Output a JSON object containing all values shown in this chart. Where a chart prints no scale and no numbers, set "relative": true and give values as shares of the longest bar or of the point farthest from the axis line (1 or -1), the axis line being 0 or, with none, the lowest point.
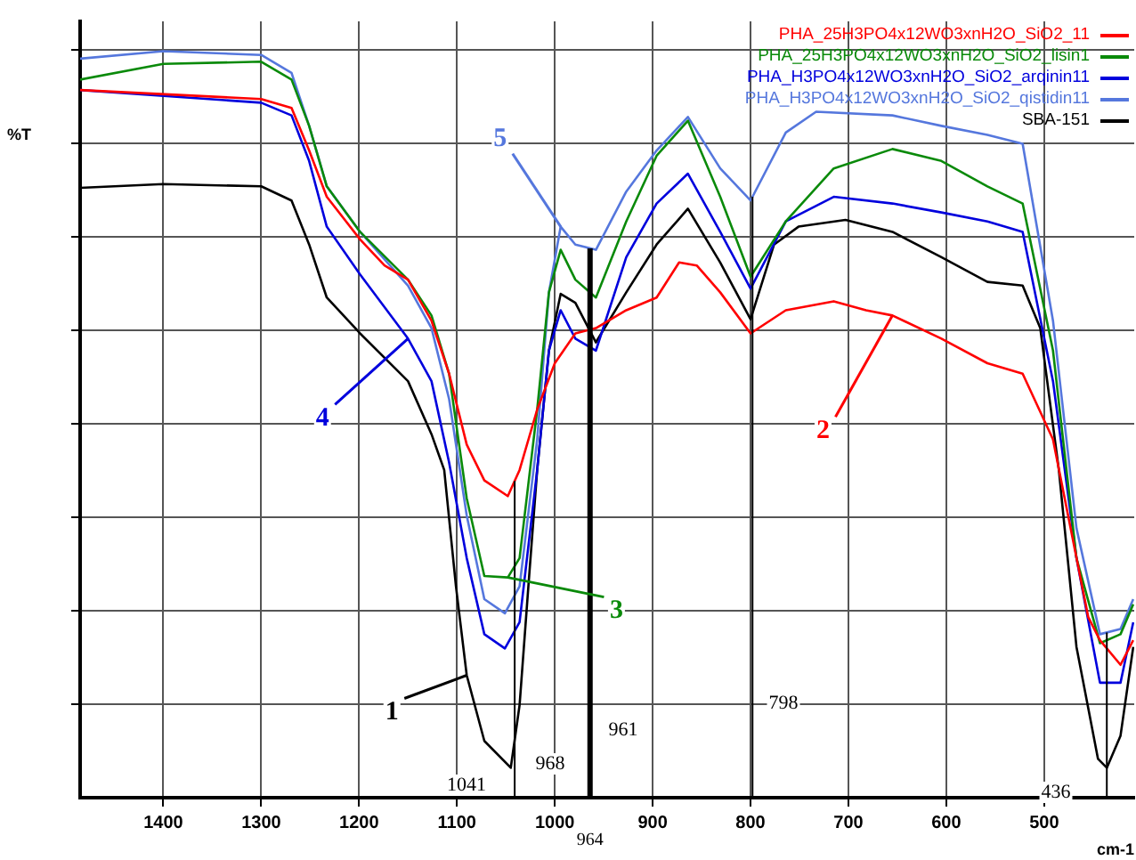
{
  "chart_data": {
    "type": "line",
    "relative": true,
    "xlabel": "cm-1",
    "ylabel": "%T",
    "xlim": [
      1485,
      408
    ],
    "xticks": [
      1400,
      1300,
      1200,
      1100,
      1000,
      900,
      800,
      700,
      600,
      500
    ],
    "grid": true,
    "legend": "top right",
    "marker": "none",
    "line_style": "solid",
    "series": [
      {
        "name": "PHA_25H3PO4x12WO3xnH2O_SiO2_11",
        "color": "#ff0000",
        "x": [
          1485,
          1300,
          1269,
          1251,
          1233,
          1199,
          1174,
          1150,
          1126,
          1108,
          1090,
          1072,
          1048,
          1036,
          1018,
          1000,
          979,
          958,
          927,
          896,
          873,
          855,
          831,
          800,
          764,
          715,
          682,
          655,
          605,
          558,
          522,
          491,
          473,
          455,
          443,
          422,
          409
        ],
        "values": [
          0.948,
          0.936,
          0.924,
          0.867,
          0.805,
          0.748,
          0.713,
          0.694,
          0.639,
          0.568,
          0.473,
          0.425,
          0.404,
          0.439,
          0.52,
          0.582,
          0.622,
          0.629,
          0.653,
          0.67,
          0.717,
          0.713,
          0.677,
          0.622,
          0.653,
          0.665,
          0.653,
          0.646,
          0.615,
          0.582,
          0.568,
          0.48,
          0.361,
          0.242,
          0.211,
          0.178,
          0.211
        ]
      },
      {
        "name": "PHA_25H3PO4x12WO3xnH2O_SiO2_lisin1",
        "color": "#0a8a0a",
        "x": [
          1485,
          1400,
          1300,
          1269,
          1251,
          1233,
          1199,
          1150,
          1126,
          1108,
          1090,
          1072,
          1048,
          1036,
          1018,
          1006,
          994,
          979,
          958,
          927,
          896,
          864,
          831,
          800,
          764,
          715,
          655,
          605,
          558,
          522,
          491,
          467,
          443,
          422,
          409
        ],
        "values": [
          0.962,
          0.983,
          0.986,
          0.962,
          0.9,
          0.819,
          0.758,
          0.694,
          0.646,
          0.568,
          0.401,
          0.297,
          0.295,
          0.321,
          0.52,
          0.677,
          0.734,
          0.694,
          0.67,
          0.772,
          0.86,
          0.907,
          0.805,
          0.698,
          0.772,
          0.843,
          0.869,
          0.853,
          0.819,
          0.796,
          0.599,
          0.321,
          0.207,
          0.219,
          0.259
        ]
      },
      {
        "name": "PHA_H3PO4x12WO3xnH2O_SiO2_arqinin11",
        "color": "#0000dd",
        "x": [
          1485,
          1300,
          1269,
          1251,
          1233,
          1199,
          1150,
          1126,
          1108,
          1090,
          1072,
          1051,
          1036,
          1018,
          1006,
          994,
          979,
          958,
          927,
          896,
          864,
          831,
          800,
          764,
          715,
          655,
          605,
          558,
          522,
          491,
          467,
          443,
          422,
          409
        ],
        "values": [
          0.948,
          0.931,
          0.914,
          0.853,
          0.765,
          0.701,
          0.615,
          0.558,
          0.449,
          0.321,
          0.219,
          0.2,
          0.235,
          0.439,
          0.599,
          0.653,
          0.615,
          0.599,
          0.724,
          0.796,
          0.836,
          0.758,
          0.682,
          0.772,
          0.805,
          0.796,
          0.784,
          0.772,
          0.758,
          0.558,
          0.321,
          0.154,
          0.154,
          0.235
        ]
      },
      {
        "name": "PHA_H3PO4x12WO3xnH2O_SiO2_qistidin11",
        "color": "#5577dd",
        "x": [
          1485,
          1400,
          1300,
          1269,
          1251,
          1233,
          1199,
          1150,
          1126,
          1108,
          1090,
          1072,
          1051,
          1036,
          1018,
          1006,
          994,
          979,
          958,
          927,
          896,
          864,
          831,
          800,
          764,
          733,
          655,
          605,
          558,
          522,
          491,
          467,
          443,
          422,
          409
        ],
        "values": [
          0.99,
          1,
          0.995,
          0.971,
          0.9,
          0.819,
          0.758,
          0.686,
          0.629,
          0.534,
          0.378,
          0.266,
          0.247,
          0.283,
          0.48,
          0.677,
          0.765,
          0.741,
          0.734,
          0.812,
          0.867,
          0.912,
          0.843,
          0.8,
          0.891,
          0.919,
          0.914,
          0.9,
          0.888,
          0.876,
          0.639,
          0.361,
          0.219,
          0.226,
          0.266
        ]
      },
      {
        "name": "SBA-151",
        "color": "#000000",
        "x": [
          1485,
          1400,
          1300,
          1269,
          1251,
          1233,
          1199,
          1150,
          1126,
          1113,
          1101,
          1090,
          1072,
          1045,
          1036,
          1027,
          1018,
          1006,
          994,
          979,
          958,
          927,
          896,
          864,
          831,
          800,
          776,
          751,
          703,
          655,
          605,
          558,
          522,
          504,
          485,
          467,
          445,
          436,
          422,
          409
        ],
        "values": [
          0.817,
          0.822,
          0.819,
          0.8,
          0.741,
          0.67,
          0.622,
          0.558,
          0.487,
          0.439,
          0.283,
          0.164,
          0.076,
          0.04,
          0.124,
          0.283,
          0.439,
          0.599,
          0.675,
          0.663,
          0.61,
          0.677,
          0.741,
          0.789,
          0.717,
          0.641,
          0.741,
          0.765,
          0.774,
          0.758,
          0.724,
          0.691,
          0.686,
          0.629,
          0.439,
          0.202,
          0.052,
          0.04,
          0.083,
          0.202
        ]
      }
    ],
    "ref_lines": [
      {
        "axis": "x",
        "value": 1041,
        "color": "#000000"
      },
      {
        "axis": "x",
        "value": 964,
        "label": "964",
        "color": "#000000"
      },
      {
        "axis": "x",
        "value": 798,
        "color": "#000000"
      },
      {
        "axis": "x",
        "value": 436,
        "color": "#000000"
      }
    ],
    "annotations": [
      {
        "text": "2",
        "x": 655,
        "y": 0.646
      },
      {
        "text": "3",
        "x": 1048,
        "y": 0.295
      },
      {
        "text": "4",
        "x": 1150,
        "y": 0.615
      },
      {
        "text": "5",
        "x": 994,
        "y": 0.765
      },
      {
        "text": "1",
        "x": 1090,
        "y": 0.164
      },
      "1041",
      "968",
      "961",
      "798",
      "436"
    ]
  }
}
